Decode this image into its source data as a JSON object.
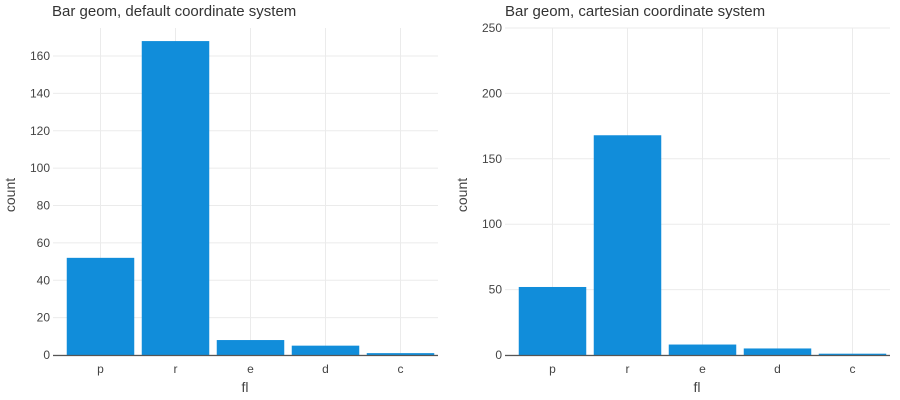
{
  "chart_data": [
    {
      "type": "bar",
      "title": "Bar geom, default coordinate system",
      "xlabel": "fl",
      "ylabel": "count",
      "categories": [
        "p",
        "r",
        "e",
        "d",
        "c"
      ],
      "values": [
        52,
        168,
        8,
        5,
        1
      ],
      "ylim": [
        0,
        175
      ],
      "yticks": [
        0,
        20,
        40,
        60,
        80,
        100,
        120,
        140,
        160
      ],
      "bar_color": "#118dda",
      "grid": true
    },
    {
      "type": "bar",
      "title": "Bar geom, cartesian coordinate system",
      "xlabel": "fl",
      "ylabel": "count",
      "categories": [
        "p",
        "r",
        "e",
        "d",
        "c"
      ],
      "values": [
        52,
        168,
        8,
        5,
        1
      ],
      "ylim": [
        0,
        250
      ],
      "yticks": [
        0,
        50,
        100,
        150,
        200,
        250
      ],
      "bar_color": "#118dda",
      "grid": true
    }
  ]
}
